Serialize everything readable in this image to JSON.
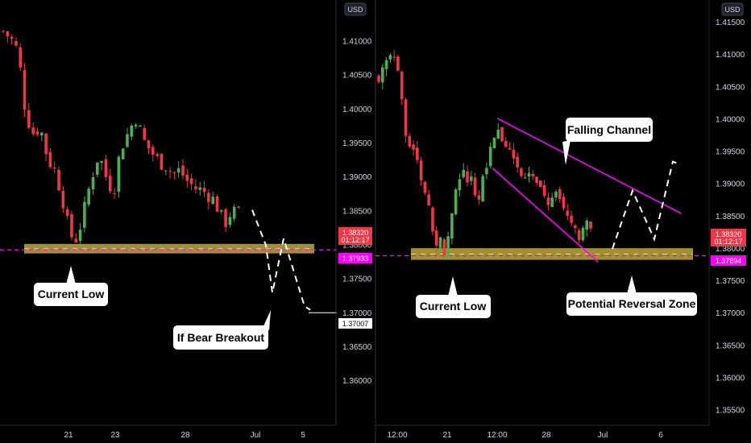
{
  "currency": "USD",
  "colors": {
    "background": "#000000",
    "up": "#4caf50",
    "down": "#f23645",
    "zone": "#c8b43c",
    "magenta": "#ff00ff",
    "price_tag": "#f23645",
    "label_bg": "#ffffff",
    "axis_text": "#d1d4dc"
  },
  "annotations": {
    "current_low_left": "Current Low",
    "bear_breakout": "If Bear Breakout",
    "current_low_right": "Current Low",
    "falling_channel": "Falling Channel",
    "reversal_zone": "Potential Reversal Zone"
  },
  "chart_data": [
    {
      "type": "candlestick",
      "panel": "left",
      "xlabel": "",
      "ylabel": "",
      "ylim": [
        1.3535,
        1.4161
      ],
      "y_ticks": [
        "1.41000",
        "1.40500",
        "1.40000",
        "1.39500",
        "1.39000",
        "1.38500",
        "1.38000",
        "1.37500",
        "1.37000",
        "1.36500",
        "1.36000"
      ],
      "x_ticks": [
        "21",
        "23",
        "28",
        "Jul",
        "5"
      ],
      "last_price": "1.38320",
      "countdown": "01:12:17",
      "support_level": "1.37933",
      "target_level": "1.37007",
      "support_zone": [
        1.3788,
        1.3802
      ],
      "trend": [
        1.4115,
        1.4105,
        1.4085,
        1.4,
        1.3965,
        1.3975,
        1.393,
        1.391,
        1.3875,
        1.3815,
        1.381,
        1.385,
        1.39,
        1.3935,
        1.39,
        1.388,
        1.3945,
        1.3965,
        1.399,
        1.3955,
        1.394,
        1.3925,
        1.392,
        1.3905,
        1.391,
        1.3895,
        1.3885,
        1.388,
        1.3875,
        1.386,
        1.383,
        1.385,
        1.3845
      ],
      "projection": [
        1.3852,
        1.38,
        1.373,
        1.381,
        1.371,
        1.3705
      ]
    },
    {
      "type": "candlestick",
      "panel": "right",
      "xlabel": "",
      "ylabel": "",
      "ylim": [
        1.3527,
        1.4185
      ],
      "y_ticks": [
        "1.41500",
        "1.41000",
        "1.40500",
        "1.40000",
        "1.39500",
        "1.39000",
        "1.38500",
        "1.38000",
        "1.37500",
        "1.37000",
        "1.36500",
        "1.36000",
        "1.35500"
      ],
      "x_ticks": [
        "12:00",
        "21",
        "12:00",
        "28",
        "Jul",
        "6"
      ],
      "last_price": "1.38320",
      "countdown": "01:12:17",
      "support_level": "1.37894",
      "support_zone": [
        1.3783,
        1.3801
      ],
      "trend": [
        1.407,
        1.408,
        1.41,
        1.406,
        1.399,
        1.395,
        1.3925,
        1.388,
        1.384,
        1.381,
        1.38,
        1.385,
        1.3905,
        1.3925,
        1.39,
        1.387,
        1.393,
        1.3955,
        1.3975,
        1.396,
        1.3945,
        1.393,
        1.3915,
        1.3905,
        1.3895,
        1.388,
        1.387,
        1.388,
        1.386,
        1.384,
        1.382,
        1.383,
        1.3835
      ],
      "channel": {
        "upper": [
          [
            1.4002
          ],
          [
            1.3855
          ]
        ],
        "lower": [
          [
            1.3925
          ],
          [
            1.378
          ]
        ]
      },
      "projection": [
        1.38,
        1.389,
        1.3815,
        1.3935,
        1.393
      ]
    }
  ]
}
